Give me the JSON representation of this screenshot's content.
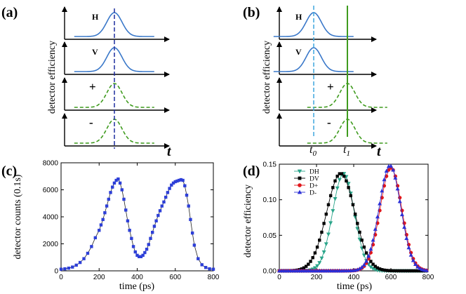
{
  "figure": {
    "panel_labels": [
      "(a)",
      "(b)",
      "(c)",
      "(d)"
    ]
  },
  "chart_data": [
    {
      "panel": "(a)",
      "type": "line",
      "ylabel": "detector efficiency",
      "xlabel": "t",
      "rows": [
        {
          "label": "H",
          "style": "solid",
          "color": "#3a78c9",
          "center": 0.0
        },
        {
          "label": "V",
          "style": "solid",
          "color": "#3a78c9",
          "center": 0.0
        },
        {
          "label": "+",
          "style": "dashed",
          "color": "#3f9b1e",
          "center": 0.0
        },
        {
          "label": "-",
          "style": "dashed",
          "color": "#3f9b1e",
          "center": 0.0
        }
      ],
      "reference_line": {
        "at": 0.0,
        "color": "#1f2f9f",
        "style": "dashed"
      }
    },
    {
      "panel": "(b)",
      "type": "line",
      "ylabel": "detector efficiency",
      "xlabel": "t",
      "rows": [
        {
          "label": "H",
          "style": "solid",
          "color": "#3a78c9",
          "center": 0.0
        },
        {
          "label": "V",
          "style": "solid",
          "color": "#3a78c9",
          "center": 0.0
        },
        {
          "label": "+",
          "style": "dashed",
          "color": "#3f9b1e",
          "center": 1.0
        },
        {
          "label": "-",
          "style": "dashed",
          "color": "#3f9b1e",
          "center": 1.0
        }
      ],
      "markers": [
        {
          "label": "t0",
          "at": 0.0,
          "color": "#3fa6de",
          "style": "dashed"
        },
        {
          "label": "t1",
          "at": 1.0,
          "color": "#3f9b1e",
          "style": "solid"
        }
      ]
    },
    {
      "panel": "(c)",
      "type": "line",
      "xlabel": "time (ps)",
      "ylabel": "detector counts (0.1s)",
      "xlim": [
        0,
        800
      ],
      "ylim": [
        0,
        8000
      ],
      "xticks": [
        0,
        200,
        400,
        600,
        800
      ],
      "yticks": [
        0,
        2000,
        4000,
        6000,
        8000
      ],
      "series": [
        {
          "name": "counts",
          "color": "#2d3fd8",
          "marker": "square",
          "x": [
            0,
            20,
            40,
            60,
            80,
            100,
            120,
            140,
            160,
            180,
            200,
            210,
            220,
            230,
            240,
            250,
            260,
            270,
            280,
            290,
            300,
            310,
            320,
            330,
            340,
            350,
            360,
            370,
            380,
            390,
            400,
            410,
            420,
            430,
            440,
            450,
            460,
            470,
            480,
            490,
            500,
            510,
            520,
            530,
            540,
            550,
            560,
            570,
            580,
            590,
            600,
            610,
            620,
            630,
            640,
            650,
            660,
            670,
            680,
            690,
            700,
            720,
            740,
            760,
            780,
            800
          ],
          "y": [
            120,
            150,
            200,
            280,
            420,
            620,
            900,
            1300,
            1800,
            2450,
            3000,
            3400,
            3800,
            4300,
            4800,
            5300,
            5800,
            6200,
            6500,
            6700,
            6800,
            6500,
            6000,
            5300,
            4500,
            3700,
            3000,
            2400,
            1800,
            1400,
            1150,
            1050,
            1050,
            1150,
            1350,
            1600,
            1950,
            2400,
            2850,
            3300,
            3700,
            4100,
            4450,
            4800,
            5100,
            5450,
            5800,
            6100,
            6350,
            6500,
            6600,
            6650,
            6700,
            6750,
            6700,
            6300,
            5600,
            4800,
            3800,
            2800,
            1900,
            900,
            450,
            250,
            150,
            120
          ]
        }
      ]
    },
    {
      "panel": "(d)",
      "type": "line",
      "xlabel": "time (ps)",
      "ylabel": "detector efficiency",
      "xlim": [
        0,
        800
      ],
      "ylim": [
        0,
        0.15
      ],
      "xticks": [
        0,
        200,
        400,
        600,
        800
      ],
      "yticks": [
        0.0,
        0.05,
        0.1,
        0.15
      ],
      "ytick_labels": [
        "0.00",
        "0.05",
        "0.10",
        "0.15"
      ],
      "series": [
        {
          "name": "DH",
          "color": "#2aa58a",
          "marker": "triangle-down",
          "center": 345,
          "sigma": 58,
          "peak": 0.137
        },
        {
          "name": "DV",
          "color": "#000000",
          "marker": "square",
          "center": 330,
          "sigma": 75,
          "peak": 0.137
        },
        {
          "name": "D+",
          "color": "#e0161b",
          "marker": "circle",
          "center": 600,
          "sigma": 58,
          "peak": 0.145
        },
        {
          "name": "D-",
          "color": "#2b2fd6",
          "marker": "triangle-up",
          "center": 595,
          "sigma": 58,
          "peak": 0.148
        }
      ]
    }
  ]
}
